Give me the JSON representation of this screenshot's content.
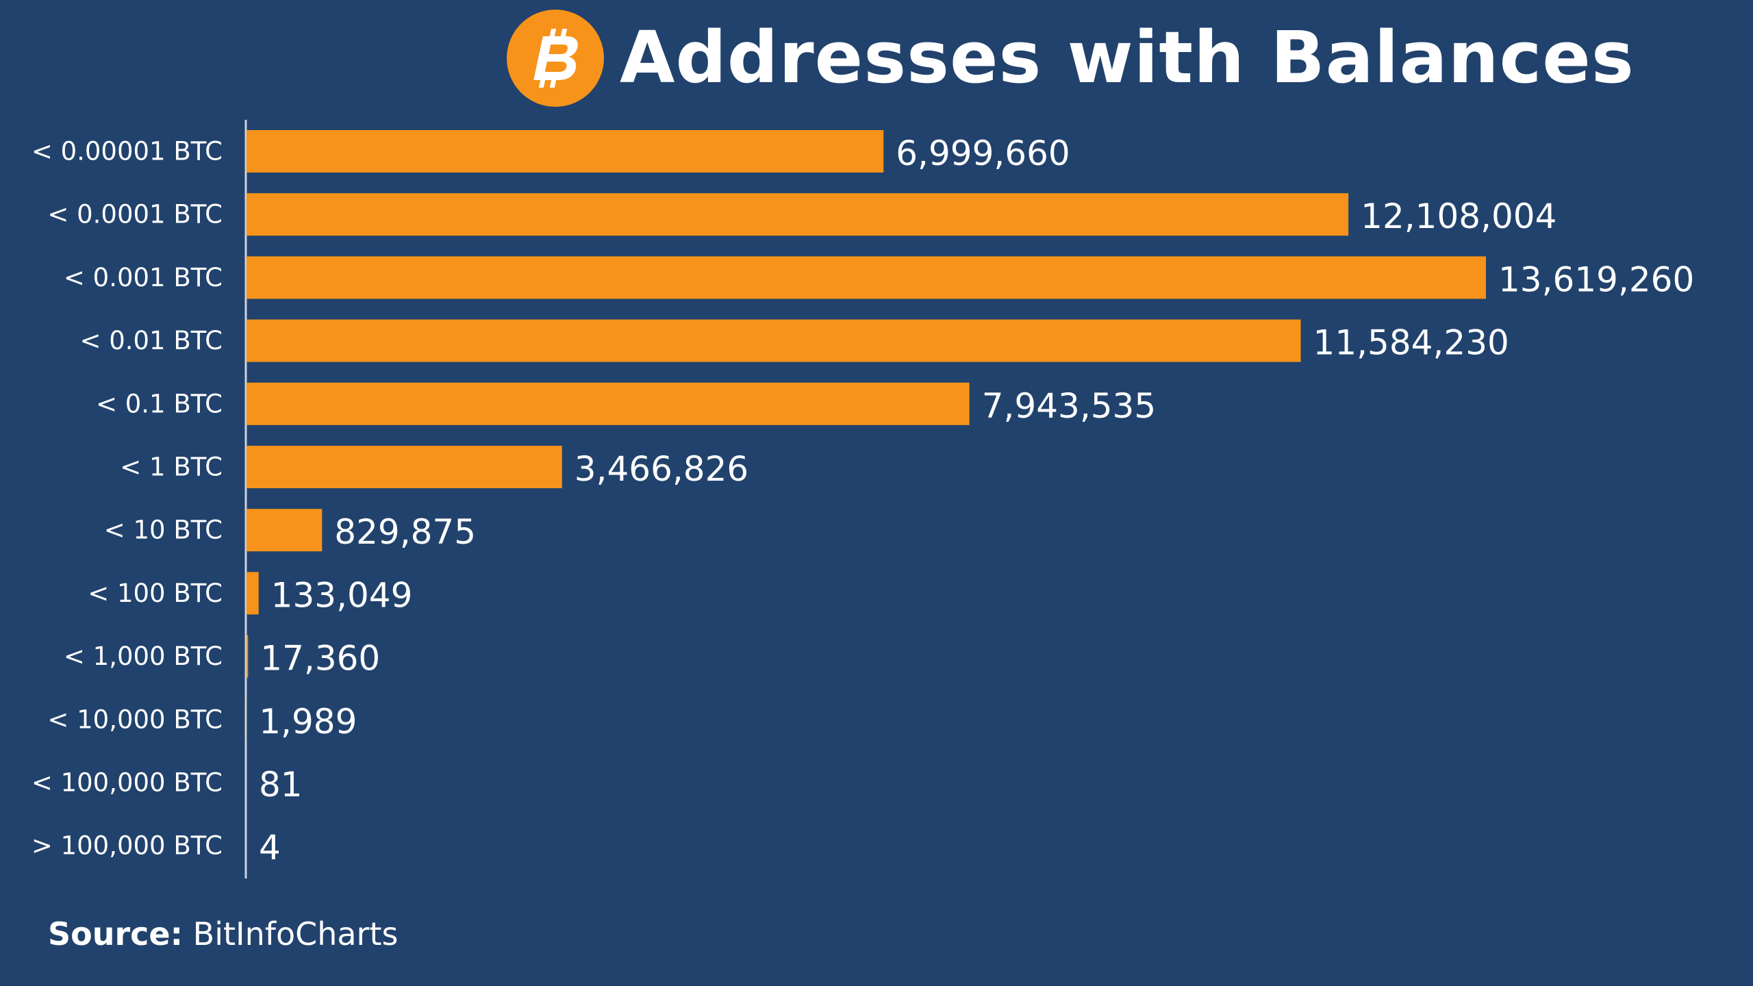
{
  "header": {
    "title": "Addresses with Balances",
    "logo_icon": "bitcoin-icon"
  },
  "colors": {
    "background": "#21426c",
    "bar": "#f7931a",
    "text": "#ffffff",
    "axis": "#c9d3e0"
  },
  "chart_data": {
    "type": "bar",
    "orientation": "horizontal",
    "title": "Addresses with Balances",
    "xlabel": "",
    "ylabel": "",
    "grid": false,
    "legend": "none",
    "categories": [
      "< 0.00001 BTC",
      "< 0.0001 BTC",
      "< 0.001 BTC",
      "< 0.01 BTC",
      "< 0.1 BTC",
      "< 1 BTC",
      "< 10 BTC",
      "< 100 BTC",
      "< 1,000 BTC",
      "< 10,000 BTC",
      "< 100,000 BTC",
      "> 100,000 BTC"
    ],
    "values": [
      6999660,
      12108004,
      13619260,
      11584230,
      7943535,
      3466826,
      829875,
      133049,
      17360,
      1989,
      81,
      4
    ],
    "value_labels": [
      "6,999,660",
      "12,108,004",
      "13,619,260",
      "11,584,230",
      "7,943,535",
      "3,466,826",
      "829,875",
      "133,049",
      "17,360",
      "1,989",
      "81",
      "4"
    ],
    "xlim": [
      0,
      13619260
    ]
  },
  "footer": {
    "source_label": "Source:",
    "source_value": "BitInfoCharts"
  }
}
